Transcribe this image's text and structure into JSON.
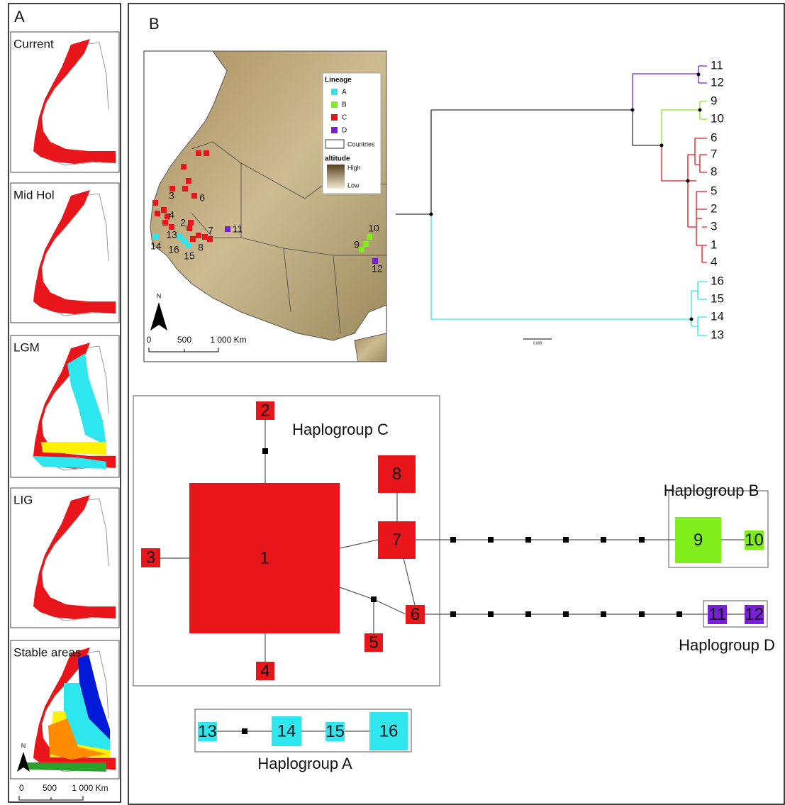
{
  "panel_a": {
    "label": "A",
    "maps": [
      {
        "label": "Current"
      },
      {
        "label": "Mid Hol"
      },
      {
        "label": "LGM"
      },
      {
        "label": "LIG"
      },
      {
        "label": "Stable areas"
      }
    ],
    "north": "N",
    "scale": [
      "0",
      "500",
      "1 000 Km"
    ]
  },
  "panel_b": {
    "label": "B",
    "map": {
      "legend": {
        "title": "Lineage",
        "lineages": [
          "A",
          "B",
          "C",
          "D"
        ],
        "countries": "Countries",
        "altitude": "altitude",
        "high": "High",
        "low": "Low"
      },
      "north": "N",
      "scale": [
        "0",
        "500",
        "1 000 Km"
      ],
      "sites": [
        "3",
        "6",
        "2",
        "4",
        "7",
        "13",
        "14",
        "16",
        "15",
        "8",
        "11",
        "10",
        "9",
        "12"
      ]
    },
    "tree": {
      "tips": [
        "11",
        "12",
        "9",
        "10",
        "6",
        "7",
        "8",
        "5",
        "2",
        "3",
        "1",
        "4",
        "16",
        "15",
        "14",
        "13"
      ],
      "scale_label": "0.009"
    },
    "network": {
      "haplotypes": [
        "1",
        "2",
        "3",
        "4",
        "5",
        "6",
        "7",
        "8",
        "9",
        "10",
        "11",
        "12",
        "13",
        "14",
        "15",
        "16"
      ],
      "haplogroups": [
        "Haplogroup A",
        "Haplogroup B",
        "Haplogroup C",
        "Haplogroup D"
      ]
    }
  }
}
